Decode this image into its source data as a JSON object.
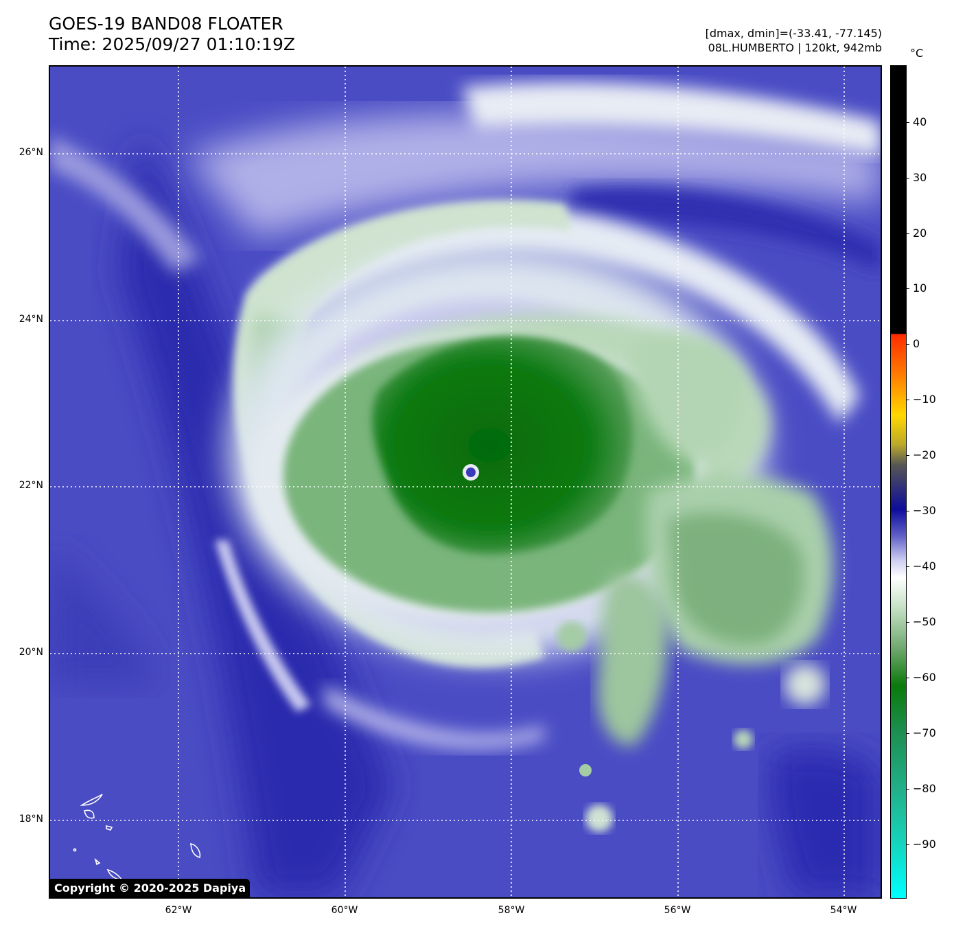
{
  "header": {
    "title_line1": "GOES-19 BAND08 FLOATER",
    "title_line2": "Time: 2025/09/27 01:10:19Z",
    "info_line1": "[dmax, dmin]=(-33.41, -77.145)",
    "info_line2": "08L.HUMBERTO | 120kt, 942mb"
  },
  "map": {
    "lat_labels": [
      "26°N",
      "24°N",
      "22°N",
      "20°N",
      "18°N"
    ],
    "lon_labels": [
      "62°W",
      "60°W",
      "58°W",
      "56°W",
      "54°W"
    ],
    "copyright": "Copyright © 2020-2025 Dapiya"
  },
  "colorbar": {
    "unit": "°C",
    "labels": [
      "40",
      "30",
      "20",
      "10",
      "0",
      "−10",
      "−20",
      "−30",
      "−40",
      "−50",
      "−60",
      "−70",
      "−80",
      "−90"
    ]
  }
}
